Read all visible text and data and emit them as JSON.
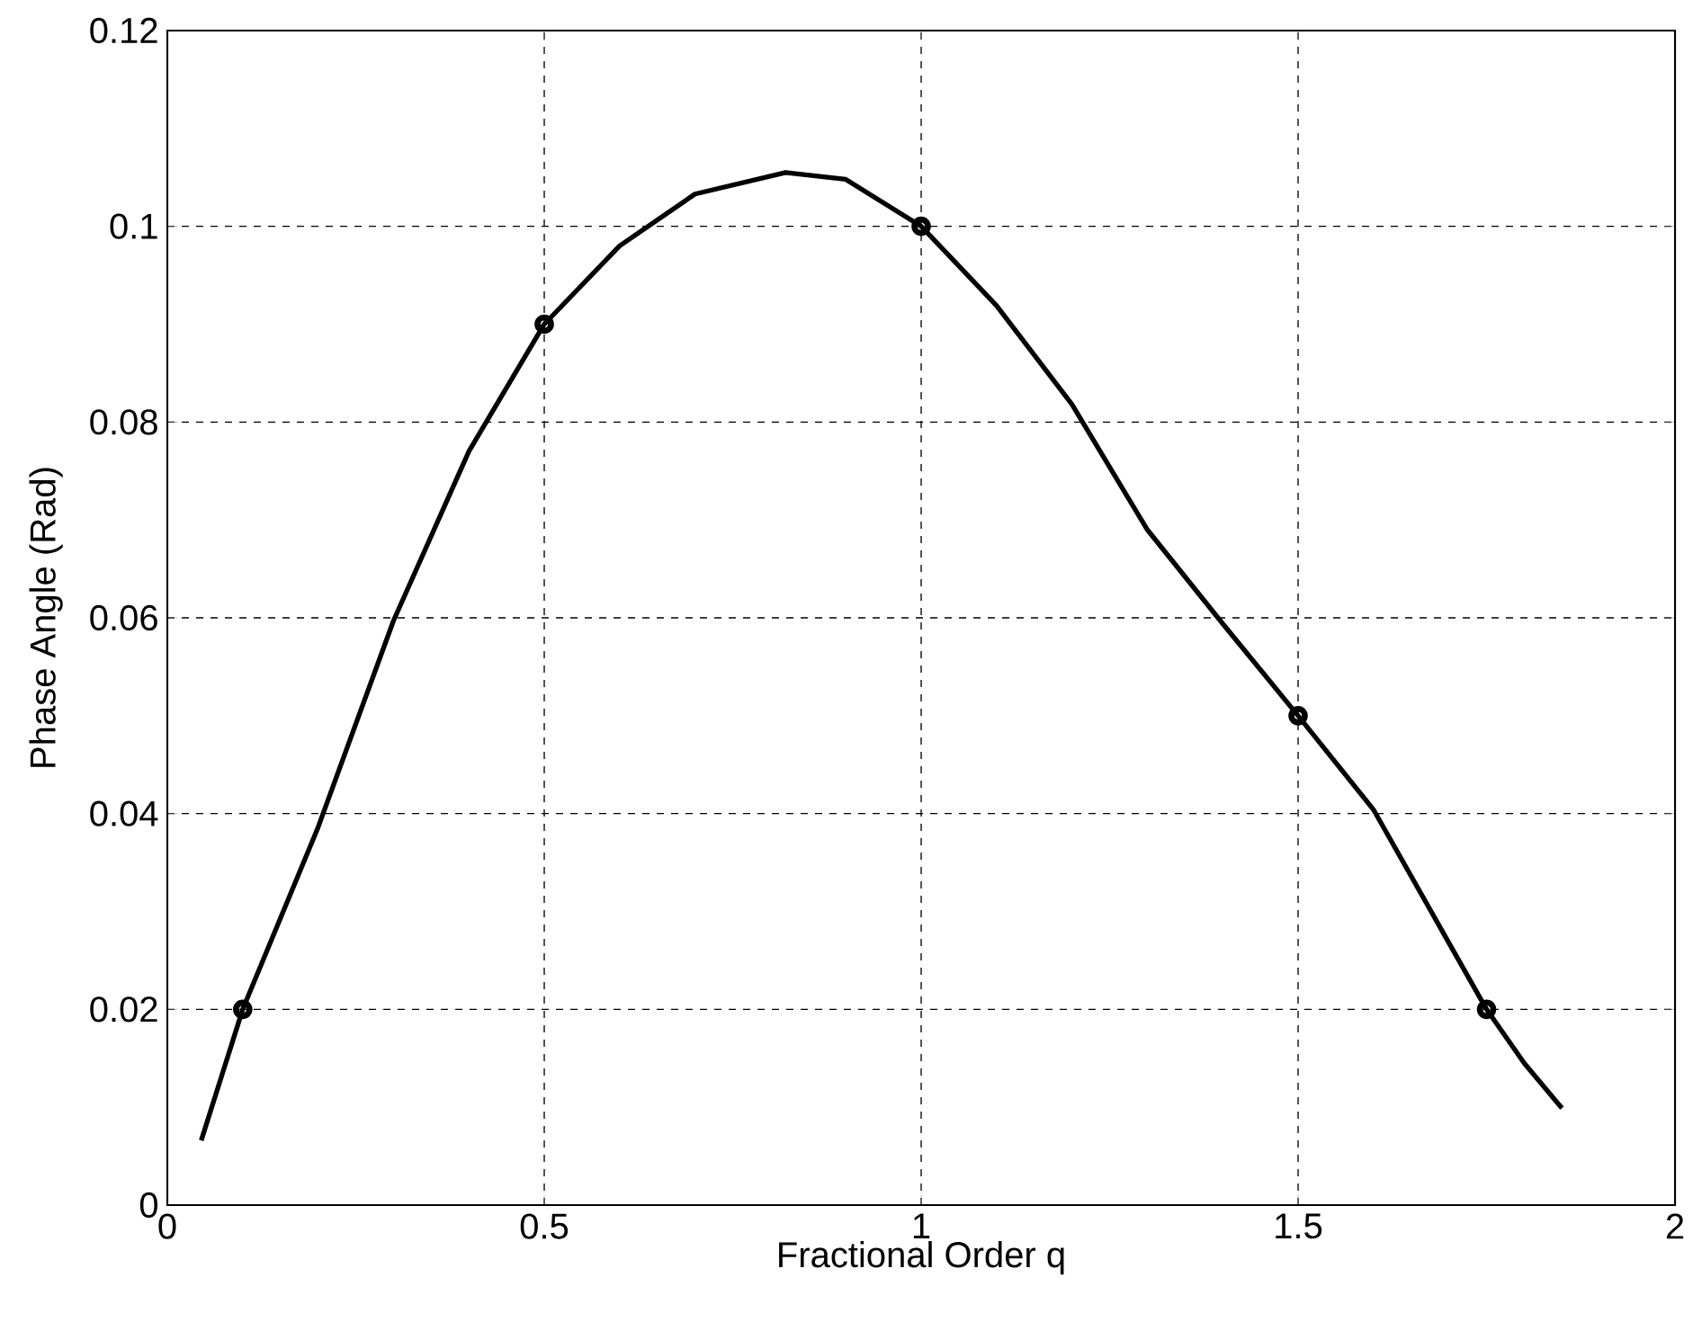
{
  "chart_data": {
    "type": "line",
    "xlabel": "Fractional Order q",
    "ylabel": "Phase Angle (Rad)",
    "xlim": [
      0,
      2
    ],
    "ylim": [
      0,
      0.12
    ],
    "xticks": [
      0,
      0.5,
      1,
      1.5,
      2
    ],
    "yticks": [
      0,
      0.02,
      0.04,
      0.06,
      0.08,
      0.1,
      0.12
    ],
    "grid": true,
    "series": [
      {
        "color": "#000000",
        "line_style": "solid",
        "marker": "none",
        "x": [
          0.045,
          0.1,
          0.2,
          0.3,
          0.4,
          0.5,
          0.6,
          0.7,
          0.82,
          0.9,
          1.0,
          1.1,
          1.2,
          1.3,
          1.4,
          1.5,
          1.6,
          1.7,
          1.75,
          1.8,
          1.85
        ],
        "values": [
          0.0066,
          0.02,
          0.0386,
          0.0597,
          0.077,
          0.09,
          0.098,
          0.1033,
          0.1055,
          0.1048,
          0.1,
          0.0919,
          0.0818,
          0.069,
          0.0594,
          0.05,
          0.0404,
          0.0268,
          0.02,
          0.0145,
          0.0099
        ]
      },
      {
        "type": "scatter",
        "color": "#000000",
        "marker": "circle",
        "x": [
          0.1,
          0.5,
          1.0,
          1.5,
          1.75
        ],
        "values": [
          0.02,
          0.09,
          0.1,
          0.05,
          0.02
        ]
      }
    ]
  }
}
